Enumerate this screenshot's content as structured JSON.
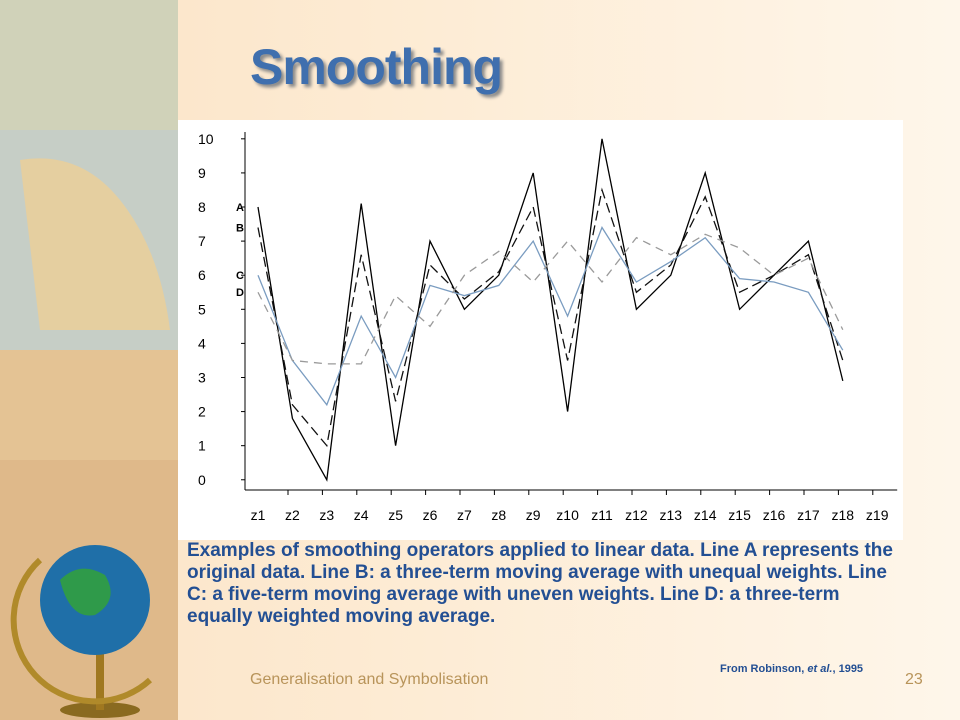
{
  "title": "Smoothing",
  "caption": "Examples of smoothing operators applied to linear data. Line A represents the original data. Line B: a three-term moving average with unequal weights. Line C: a five-term moving average with uneven weights. Line D: a three-term equally weighted moving average.",
  "citation": {
    "prefix": "From Robinson, ",
    "italic": "et al.",
    "suffix": ", 1995"
  },
  "footer": "Generalisation and Symbolisation",
  "page_number": "23",
  "chart_data": {
    "type": "line",
    "categories": [
      "z1",
      "z2",
      "z3",
      "z4",
      "z5",
      "z6",
      "z7",
      "z8",
      "z9",
      "z10",
      "z11",
      "z12",
      "z13",
      "z14",
      "z15",
      "z16",
      "z17",
      "z18",
      "z19"
    ],
    "series": [
      {
        "name": "A",
        "color": "#000000",
        "dash": "",
        "values": [
          8,
          1.8,
          0,
          8.1,
          1,
          7,
          5,
          6,
          9,
          2,
          10,
          5,
          6,
          9,
          5,
          6,
          7,
          2.9,
          null
        ]
      },
      {
        "name": "B",
        "color": "#111111",
        "dash": "10,5",
        "values": [
          7.4,
          2.2,
          1,
          6.6,
          2.3,
          6.3,
          5.3,
          6.1,
          8,
          3.5,
          8.5,
          5.5,
          6.3,
          8.3,
          5.5,
          6,
          6.6,
          3.5,
          null
        ]
      },
      {
        "name": "C",
        "color": "#7a9cc0",
        "dash": "",
        "values": [
          6,
          3.5,
          2.2,
          4.8,
          3,
          5.7,
          5.4,
          5.7,
          7,
          4.8,
          7.4,
          5.8,
          6.4,
          7.1,
          5.9,
          5.8,
          5.5,
          3.8,
          null
        ]
      },
      {
        "name": "D",
        "color": "#9a9a9a",
        "dash": "8,6",
        "values": [
          5.5,
          3.5,
          3.4,
          3.4,
          5.4,
          4.5,
          6,
          6.7,
          5.8,
          7,
          5.8,
          7.1,
          6.6,
          7.2,
          6.8,
          6,
          6.5,
          4.4,
          null
        ]
      }
    ],
    "ylim": [
      -0.3,
      10.2
    ],
    "yticks": [
      0,
      1,
      2,
      3,
      4,
      5,
      6,
      7,
      8,
      9,
      10
    ]
  }
}
